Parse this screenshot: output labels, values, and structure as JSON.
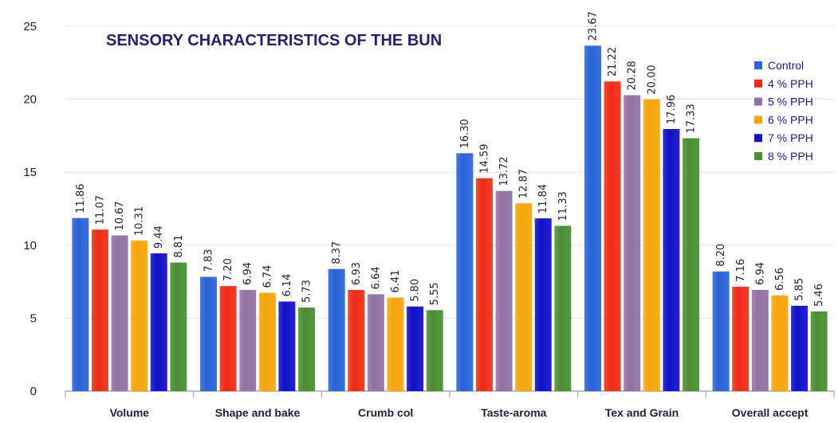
{
  "chart_data": {
    "type": "bar",
    "title": "SENSORY CHARACTERISTICS OF THE BUN",
    "xlabel": "",
    "ylabel": "",
    "ylim": [
      0,
      25
    ],
    "yticks": [
      0,
      5,
      10,
      15,
      20,
      25
    ],
    "grid": true,
    "legend_position": "right",
    "categories": [
      "Volume",
      "Shape and bake",
      "Crumb col",
      "Taste-aroma",
      "Tex and Grain",
      "Overall accept"
    ],
    "series": [
      {
        "name": "Control",
        "color": "#2a63d8",
        "values": [
          11.86,
          7.83,
          8.37,
          16.3,
          23.67,
          8.2
        ],
        "labels": [
          "11.86",
          "7.83",
          "8.37",
          "16.30",
          "23.67",
          "8.20"
        ]
      },
      {
        "name": "4 % PPH",
        "color": "#ee2b18",
        "values": [
          11.07,
          7.2,
          6.93,
          14.59,
          21.22,
          7.16
        ],
        "labels": [
          "11.07",
          "7.20",
          "6.93",
          "14.59",
          "21.22",
          "7.16"
        ]
      },
      {
        "name": "5 % PPH",
        "color": "#8f72a3",
        "values": [
          10.67,
          6.94,
          6.64,
          13.72,
          20.28,
          6.94
        ],
        "labels": [
          "10.67",
          "6.94",
          "6.64",
          "13.72",
          "20.28",
          "6.94"
        ]
      },
      {
        "name": "6 % PPH",
        "color": "#f6a50b",
        "values": [
          10.31,
          6.74,
          6.41,
          12.87,
          20.0,
          6.56
        ],
        "labels": [
          "10.31",
          "6.74",
          "6.41",
          "12.87",
          "20.00",
          "6.56"
        ]
      },
      {
        "name": "7 % PPH",
        "color": "#1010c8",
        "values": [
          9.44,
          6.14,
          5.8,
          11.84,
          17.96,
          5.85
        ],
        "labels": [
          "9.44",
          "6.14",
          "5.80",
          "11.84",
          "17.96",
          "5.85"
        ]
      },
      {
        "name": "8 % PPH",
        "color": "#4a8e32",
        "values": [
          8.81,
          5.73,
          5.55,
          11.33,
          17.33,
          5.46
        ],
        "labels": [
          "8.81",
          "5.73",
          "5.55",
          "11.33",
          "17.33",
          "5.46"
        ]
      }
    ]
  }
}
